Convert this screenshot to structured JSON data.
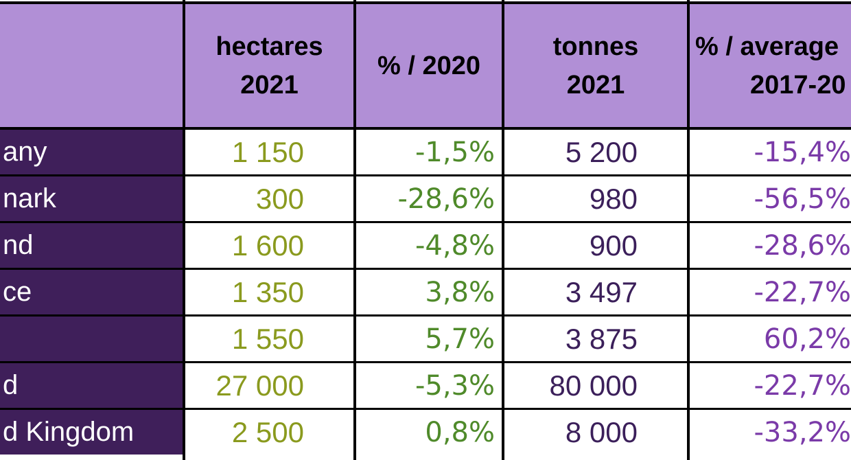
{
  "table": {
    "headers": {
      "hectares_line1": "hectares",
      "hectares_line2": "2021",
      "pct2020": "% / 2020",
      "tonnes_line1": "tonnes",
      "tonnes_line2": "2021",
      "avg_line1": "% / average",
      "avg_line2": "2017-20"
    },
    "rows": [
      {
        "country": "any",
        "hectares": "1 150",
        "pct2020": "-1,5%",
        "tonnes": "5 200",
        "avg": "-15,4%"
      },
      {
        "country": "nark",
        "hectares": "300",
        "pct2020": "-28,6%",
        "tonnes": "980",
        "avg": "-56,5%"
      },
      {
        "country": "nd",
        "hectares": "1 600",
        "pct2020": "-4,8%",
        "tonnes": "900",
        "avg": "-28,6%"
      },
      {
        "country": "ce",
        "hectares": "1 350",
        "pct2020": "3,8%",
        "tonnes": "3 497",
        "avg": "-22,7%"
      },
      {
        "country": "",
        "hectares": "1 550",
        "pct2020": "5,7%",
        "tonnes": "3 875",
        "avg": "60,2%"
      },
      {
        "country": "d",
        "hectares": "27 000",
        "pct2020": "-5,3%",
        "tonnes": "80 000",
        "avg": "-22,7%"
      },
      {
        "country": "d Kingdom",
        "hectares": "2 500",
        "pct2020": "0,8%",
        "tonnes": "8 000",
        "avg": "-33,2%"
      }
    ]
  },
  "colors": {
    "header_bg": "#b18fd6",
    "country_bg": "#3f1f5a",
    "hectares_text": "#8a9a1e",
    "pct2020_text": "#4f8a2a",
    "tonnes_text": "#3b1f5a",
    "avg_text": "#7a3aa8"
  }
}
